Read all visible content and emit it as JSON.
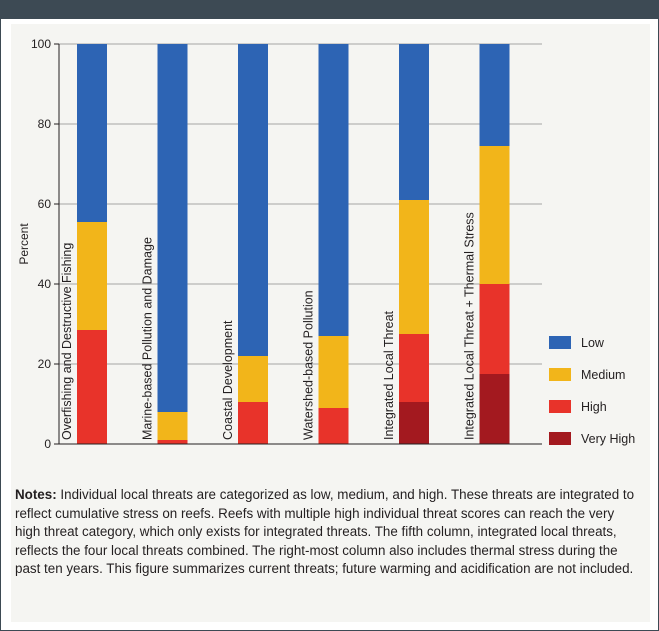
{
  "chart_data": {
    "type": "bar",
    "stacked": true,
    "ylabel": "Percent",
    "ylim": [
      0,
      100
    ],
    "yticks": [
      0,
      20,
      40,
      60,
      80,
      100
    ],
    "grid": true,
    "legend_position": "right",
    "categories": [
      "Overfishing and Destructive Fishing",
      "Marine-based Pollution and Damage",
      "Coastal Development",
      "Watershed-based Pollution",
      "Integrated Local Threat",
      "Integrated Local Threat + Thermal Stress"
    ],
    "series": [
      {
        "name": "Very High",
        "color": "#a3191f",
        "values": [
          0,
          0,
          0,
          0,
          10.5,
          17.5
        ]
      },
      {
        "name": "High",
        "color": "#e8332a",
        "values": [
          28.5,
          1,
          10.5,
          9,
          17,
          22.5
        ]
      },
      {
        "name": "Medium",
        "color": "#f2b51a",
        "values": [
          27,
          7,
          11.5,
          18,
          33.5,
          34.5
        ]
      },
      {
        "name": "Low",
        "color": "#2d64b4",
        "values": [
          44.5,
          92,
          78,
          73,
          39,
          25.5
        ]
      }
    ],
    "legend_order": [
      "Low",
      "Medium",
      "High",
      "Very High"
    ]
  },
  "notes": {
    "label": "Notes:",
    "text": "Individual local threats are categorized as low, medium, and high. These threats are integrated to reflect cumulative stress on reefs. Reefs with multiple high individual threat scores can reach the very high threat category, which only exists for integrated threats. The fifth column, integrated local threats, reflects the four local threats combined. The right-most column also includes thermal stress during the past ten years. This figure summarizes current threats; future warming and acidification are not included."
  }
}
